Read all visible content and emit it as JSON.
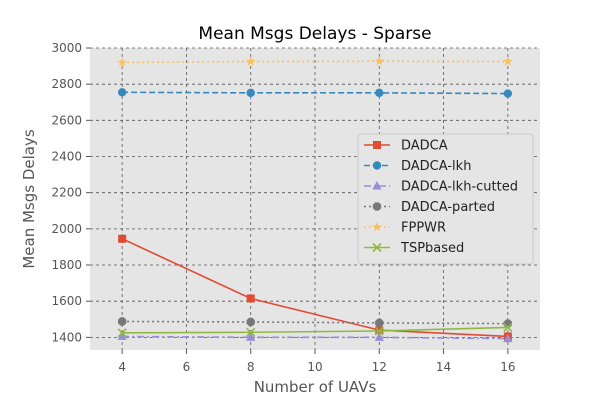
{
  "chart_data": {
    "type": "line",
    "title": "Mean Msgs Delays - Sparse",
    "xlabel": "Number of UAVs",
    "ylabel": "Mean Msgs Delays",
    "x": [
      4,
      8,
      12,
      16
    ],
    "xlim": [
      3,
      17
    ],
    "ylim": [
      1330,
      3000
    ],
    "xticks": [
      4,
      6,
      8,
      10,
      12,
      14,
      16
    ],
    "yticks": [
      1400,
      1600,
      1800,
      2000,
      2200,
      2400,
      2600,
      2800,
      3000
    ],
    "grid": true,
    "legend_position": "center-right",
    "series": [
      {
        "name": "DADCA",
        "values": [
          1945,
          1615,
          1440,
          1405
        ],
        "color": "#E24A33",
        "dash": "solid",
        "marker": "square"
      },
      {
        "name": "DADCA-lkh",
        "values": [
          2755,
          2752,
          2752,
          2748
        ],
        "color": "#348ABD",
        "dash": "dashed",
        "marker": "circle"
      },
      {
        "name": "DADCA-lkh-cutted",
        "values": [
          1405,
          1400,
          1400,
          1393
        ],
        "color": "#988ED5",
        "dash": "dashdot",
        "marker": "triangle"
      },
      {
        "name": "DADCA-parted",
        "values": [
          1488,
          1485,
          1480,
          1476
        ],
        "color": "#777777",
        "dash": "dotted",
        "marker": "octagon"
      },
      {
        "name": "FPPWR",
        "values": [
          2920,
          2925,
          2927,
          2925
        ],
        "color": "#FBC15E",
        "dash": "dotted",
        "marker": "star"
      },
      {
        "name": "TSPbased",
        "values": [
          1425,
          1428,
          1435,
          1455
        ],
        "color": "#8EBA42",
        "dash": "solid",
        "marker": "x"
      }
    ]
  }
}
